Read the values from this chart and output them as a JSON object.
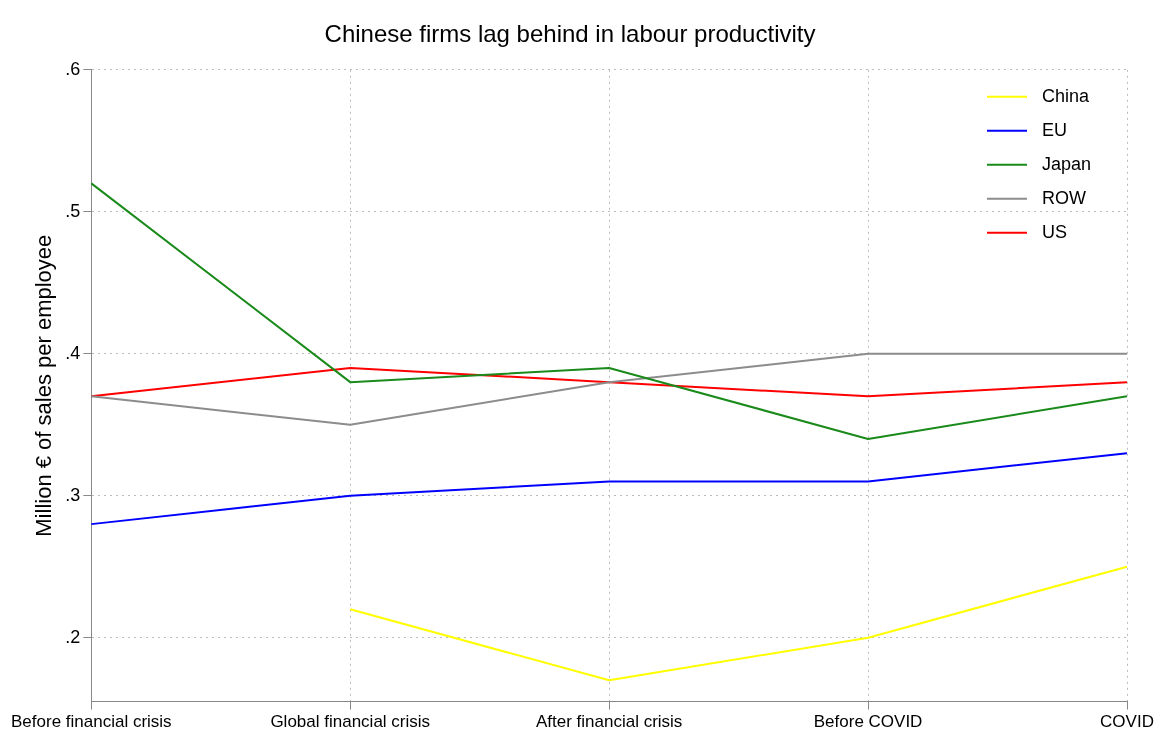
{
  "chart_data": {
    "type": "line",
    "title": "Chinese firms lag behind in labour productivity",
    "ylabel": "Million € of sales per employee",
    "categories": [
      "Before financial crisis",
      "Global financial crisis",
      "After financial crisis",
      "Before COVID",
      "COVID"
    ],
    "series": [
      {
        "name": "China",
        "color": "#ffff00",
        "values": [
          null,
          0.22,
          0.17,
          0.2,
          0.25
        ]
      },
      {
        "name": "EU",
        "color": "#0000ff",
        "values": [
          0.28,
          0.3,
          0.31,
          0.31,
          0.33
        ]
      },
      {
        "name": "Japan",
        "color": "#1a8a1a",
        "values": [
          0.52,
          0.38,
          0.39,
          0.34,
          0.37
        ]
      },
      {
        "name": "ROW",
        "color": "#8c8c8c",
        "values": [
          0.37,
          0.35,
          0.38,
          0.4,
          0.4
        ]
      },
      {
        "name": "US",
        "color": "#ff0000",
        "values": [
          0.37,
          0.39,
          0.38,
          0.37,
          0.38
        ]
      }
    ],
    "ylim": [
      0.155,
      0.6
    ],
    "yticks": [
      {
        "value": 0.2,
        "label": ".2"
      },
      {
        "value": 0.3,
        "label": ".3"
      },
      {
        "value": 0.4,
        "label": ".4"
      },
      {
        "value": 0.5,
        "label": ".5"
      },
      {
        "value": 0.6,
        "label": ".6"
      }
    ],
    "grid": true,
    "legend": "top right",
    "marker": "none",
    "line_style": "solid"
  }
}
